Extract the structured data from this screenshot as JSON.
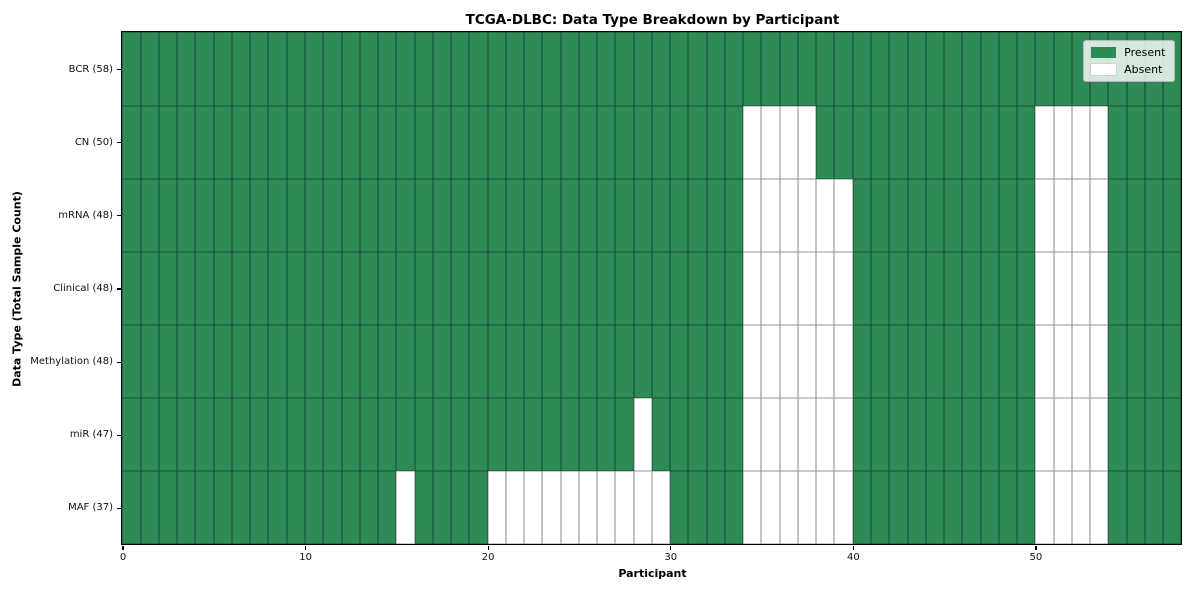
{
  "title": "TCGA-DLBC: Data Type Breakdown by Participant",
  "chart_data": {
    "type": "heatmap",
    "title": "TCGA-DLBC: Data Type Breakdown by Participant",
    "xlabel": "Participant",
    "ylabel": "Data Type (Total Sample Count)",
    "x_range": [
      0,
      58
    ],
    "x_tick_values": [
      0,
      10,
      20,
      30,
      40,
      50
    ],
    "n_participants": 58,
    "grid_on": true,
    "legend_position": "upper right",
    "present_color": "#2e8b57",
    "absent_color": "#ffffff",
    "legend_items": [
      {
        "label": "Present",
        "color": "#2e8b57"
      },
      {
        "label": "Absent",
        "color": "#ffffff"
      }
    ],
    "rows": [
      {
        "label": "BCR (58)",
        "data_type": "BCR",
        "total_samples": 58,
        "absent_participants": []
      },
      {
        "label": "CN (50)",
        "data_type": "CN",
        "total_samples": 50,
        "absent_participants": [
          34,
          35,
          36,
          37,
          50,
          51,
          52,
          53
        ]
      },
      {
        "label": "mRNA (48)",
        "data_type": "mRNA",
        "total_samples": 48,
        "absent_participants": [
          34,
          35,
          36,
          37,
          38,
          39,
          50,
          51,
          52,
          53
        ]
      },
      {
        "label": "Clinical (48)",
        "data_type": "Clinical",
        "total_samples": 48,
        "absent_participants": [
          34,
          35,
          36,
          37,
          38,
          39,
          50,
          51,
          52,
          53
        ]
      },
      {
        "label": "Methylation (48)",
        "data_type": "Methylation",
        "total_samples": 48,
        "absent_participants": [
          34,
          35,
          36,
          37,
          38,
          39,
          50,
          51,
          52,
          53
        ]
      },
      {
        "label": "miR (47)",
        "data_type": "miR",
        "total_samples": 47,
        "absent_participants": [
          28,
          34,
          35,
          36,
          37,
          38,
          39,
          50,
          51,
          52,
          53
        ]
      },
      {
        "label": "MAF (37)",
        "data_type": "MAF",
        "total_samples": 37,
        "absent_participants": [
          15,
          20,
          21,
          22,
          23,
          24,
          25,
          26,
          27,
          28,
          29,
          34,
          35,
          36,
          37,
          38,
          39,
          50,
          51,
          52,
          53
        ]
      }
    ]
  }
}
